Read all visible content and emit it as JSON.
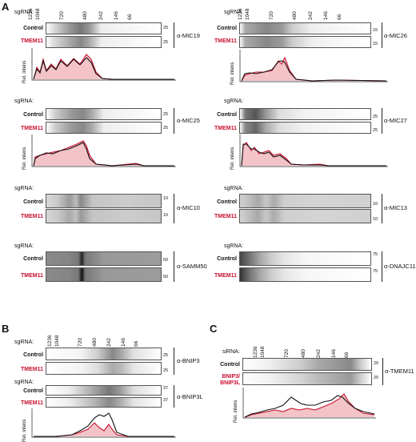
{
  "panel_letters": {
    "A": "A",
    "B": "B",
    "C": "C"
  },
  "colors": {
    "control": "#111111",
    "tmem11": "#c8102e",
    "tmem11_fill": "#f3c3c8"
  },
  "labels": {
    "sgrna": "sgRNA:",
    "sirna": "siRNA:",
    "control": "Control",
    "tmem11": "TMEM11",
    "bnip3_line1": "BNIP3/",
    "bnip3_line2": "BNIP3L",
    "rel_intens": "Rel. intens"
  },
  "markers": [
    "1236",
    "1048",
    "720",
    "480",
    "242",
    "146",
    "66"
  ],
  "blots": {
    "mic19": {
      "antibody": "α-MIC19",
      "kd_top": "25",
      "kd_bottom": "25"
    },
    "mic26": {
      "antibody": "α-MIC26",
      "kd_top": "15",
      "kd_bottom": "15"
    },
    "mic25": {
      "antibody": "α-MIC25",
      "kd_top": "25",
      "kd_bottom": "25"
    },
    "mic27": {
      "antibody": "α-MIC27",
      "kd_top": "25",
      "kd_bottom": "25"
    },
    "mic10": {
      "antibody": "α-MIC10",
      "kd_top": "10",
      "kd_bottom": "10"
    },
    "mic13": {
      "antibody": "α-MIC13",
      "kd_top": "10",
      "kd_bottom": "10"
    },
    "samm50": {
      "antibody": "α-SAMM50",
      "kd_top": "50",
      "kd_bottom": "50"
    },
    "dnajc11": {
      "antibody": "α-DNAJC11",
      "kd_top": "75",
      "kd_bottom": "75"
    },
    "bnip3": {
      "antibody": "α-BNIP3",
      "kd_top": "25",
      "kd_bottom": "25"
    },
    "bnip3l": {
      "antibody": "α-BNIP3L",
      "kd_top": "37",
      "kd_bottom": "37"
    },
    "tmem11": {
      "antibody": "α-TMEM11",
      "kd_top": "20",
      "kd_bottom": "20"
    }
  }
}
